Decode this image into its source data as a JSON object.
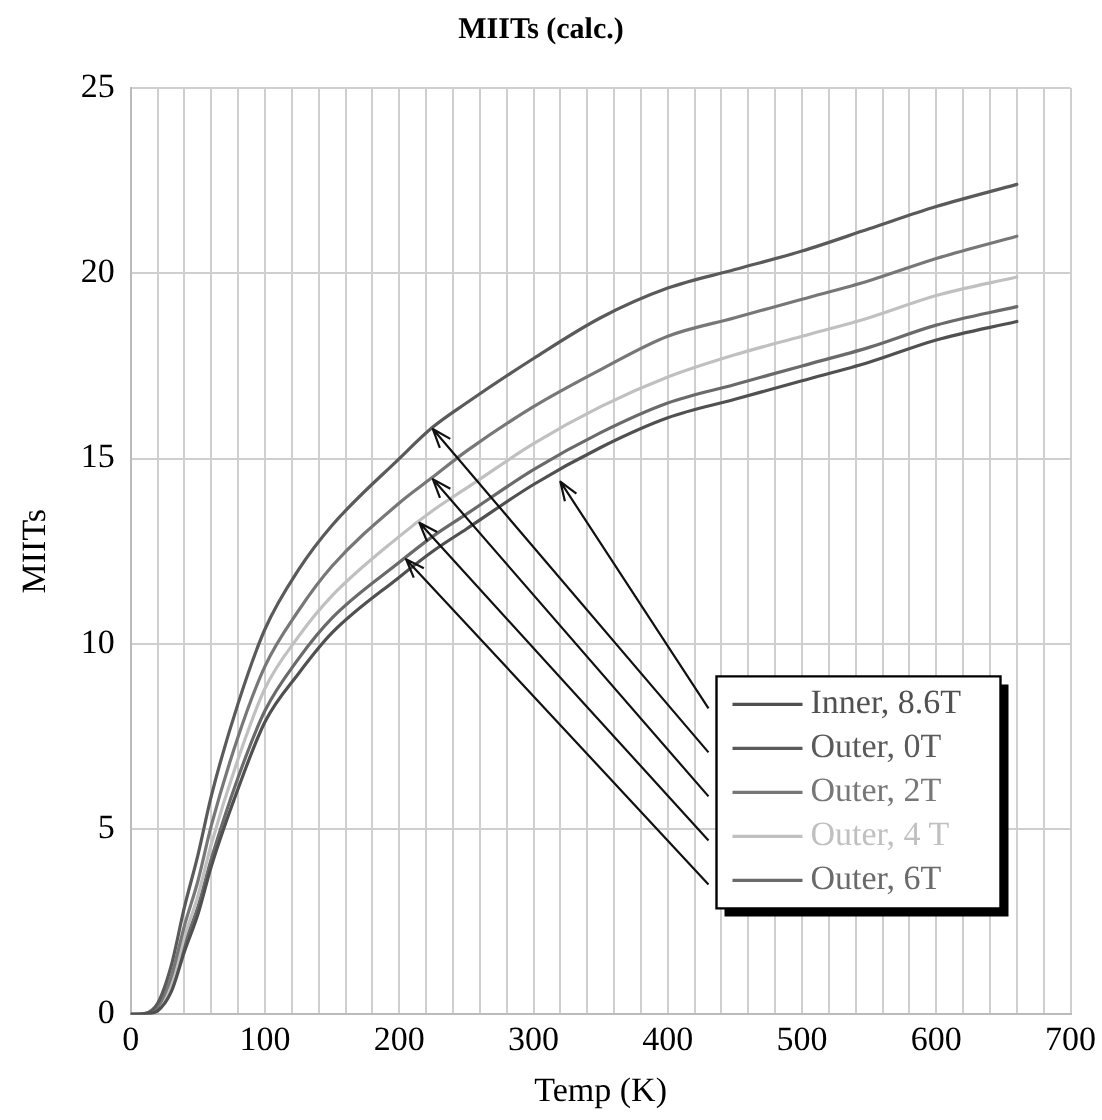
{
  "chart_data": {
    "type": "line",
    "title": "MIITs (calc.)",
    "xlabel": "Temp (K)",
    "ylabel": "MIITs",
    "x": [
      0,
      10,
      20,
      30,
      40,
      50,
      60,
      80,
      100,
      125,
      150,
      200,
      225,
      250,
      300,
      350,
      400,
      450,
      500,
      550,
      600,
      660
    ],
    "series": [
      {
        "name": "Inner, 8.6T",
        "color": "#505050",
        "values": [
          0,
          0.01,
          0.1,
          0.6,
          1.7,
          2.7,
          4.0,
          6.1,
          7.9,
          9.2,
          10.3,
          11.8,
          12.5,
          13.1,
          14.3,
          15.3,
          16.1,
          16.6,
          17.1,
          17.6,
          18.2,
          18.7
        ]
      },
      {
        "name": "Outer, 0T",
        "color": "#5a5a5a",
        "values": [
          0,
          0.02,
          0.3,
          1.3,
          2.9,
          4.3,
          5.9,
          8.4,
          10.4,
          12.0,
          13.2,
          15.0,
          15.85,
          16.5,
          17.7,
          18.8,
          19.6,
          20.1,
          20.6,
          21.2,
          21.8,
          22.4
        ]
      },
      {
        "name": "Outer, 2T",
        "color": "#777777",
        "values": [
          0,
          0.01,
          0.2,
          1.0,
          2.4,
          3.6,
          5.1,
          7.5,
          9.4,
          10.9,
          12.1,
          13.8,
          14.5,
          15.2,
          16.4,
          17.4,
          18.3,
          18.8,
          19.3,
          19.8,
          20.4,
          21.0
        ]
      },
      {
        "name": "Outer, 4 T",
        "color": "#c0c0c0",
        "values": [
          0,
          0.01,
          0.15,
          0.8,
          2.1,
          3.2,
          4.6,
          6.9,
          8.8,
          10.2,
          11.3,
          12.9,
          13.6,
          14.2,
          15.4,
          16.4,
          17.2,
          17.8,
          18.3,
          18.8,
          19.4,
          19.9
        ]
      },
      {
        "name": "Outer, 6T",
        "color": "#6a6a6a",
        "values": [
          0,
          0.01,
          0.1,
          0.7,
          1.9,
          2.9,
          4.2,
          6.4,
          8.2,
          9.6,
          10.7,
          12.2,
          12.9,
          13.5,
          14.7,
          15.7,
          16.5,
          17.0,
          17.5,
          18.0,
          18.6,
          19.1
        ]
      }
    ],
    "xlim": [
      0,
      700
    ],
    "xticks": [
      0,
      {
        "value": 20,
        "label": null
      },
      {
        "value": 40,
        "label": null
      },
      {
        "value": 60,
        "label": null
      },
      {
        "value": 80,
        "label": null
      },
      100,
      {
        "value": 120,
        "label": null
      },
      {
        "value": 140,
        "label": null
      },
      {
        "value": 160,
        "label": null
      },
      {
        "value": 180,
        "label": null
      },
      200,
      {
        "value": 220,
        "label": null
      },
      {
        "value": 240,
        "label": null
      },
      {
        "value": 260,
        "label": null
      },
      {
        "value": 280,
        "label": null
      },
      300,
      {
        "value": 320,
        "label": null
      },
      {
        "value": 340,
        "label": null
      },
      {
        "value": 360,
        "label": null
      },
      {
        "value": 380,
        "label": null
      },
      400,
      {
        "value": 420,
        "label": null
      },
      {
        "value": 440,
        "label": null
      },
      {
        "value": 460,
        "label": null
      },
      {
        "value": 480,
        "label": null
      },
      500,
      {
        "value": 520,
        "label": null
      },
      {
        "value": 540,
        "label": null
      },
      {
        "value": 560,
        "label": null
      },
      {
        "value": 580,
        "label": null
      },
      600,
      {
        "value": 620,
        "label": null
      },
      {
        "value": 640,
        "label": null
      },
      {
        "value": 660,
        "label": null
      },
      {
        "value": 680,
        "label": null
      },
      700
    ],
    "ylim": [
      0,
      25
    ],
    "yticks": [
      0,
      5,
      10,
      15,
      20,
      25
    ],
    "grid": true,
    "legend": "bottom right",
    "marker": "none",
    "line_style": "solid"
  }
}
